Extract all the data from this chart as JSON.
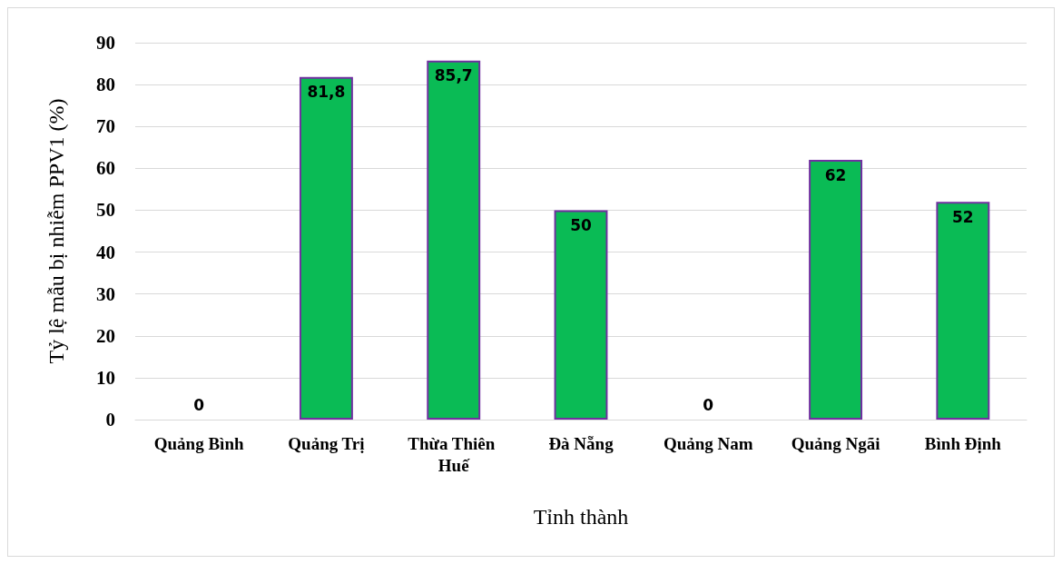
{
  "chart_data": {
    "type": "bar",
    "xlabel": "Tỉnh thành",
    "ylabel": "Tỷ lệ mẫu bị nhiễm PPV1 (%)",
    "categories": [
      "Quảng Bình",
      "Quảng Trị",
      "Thừa Thiên Huế",
      "Đà Nẵng",
      "Quảng Nam",
      "Quảng Ngãi",
      "Bình Định"
    ],
    "values": [
      0,
      81.8,
      85.7,
      50,
      0,
      62,
      52
    ],
    "value_labels": [
      "0",
      "81,8",
      "85,7",
      "50",
      "0",
      "62",
      "52"
    ],
    "color": "#0abb55",
    "ylim": [
      0,
      90
    ],
    "yticks": [
      0,
      10,
      20,
      30,
      40,
      50,
      60,
      70,
      80,
      90
    ],
    "grid": "y"
  }
}
